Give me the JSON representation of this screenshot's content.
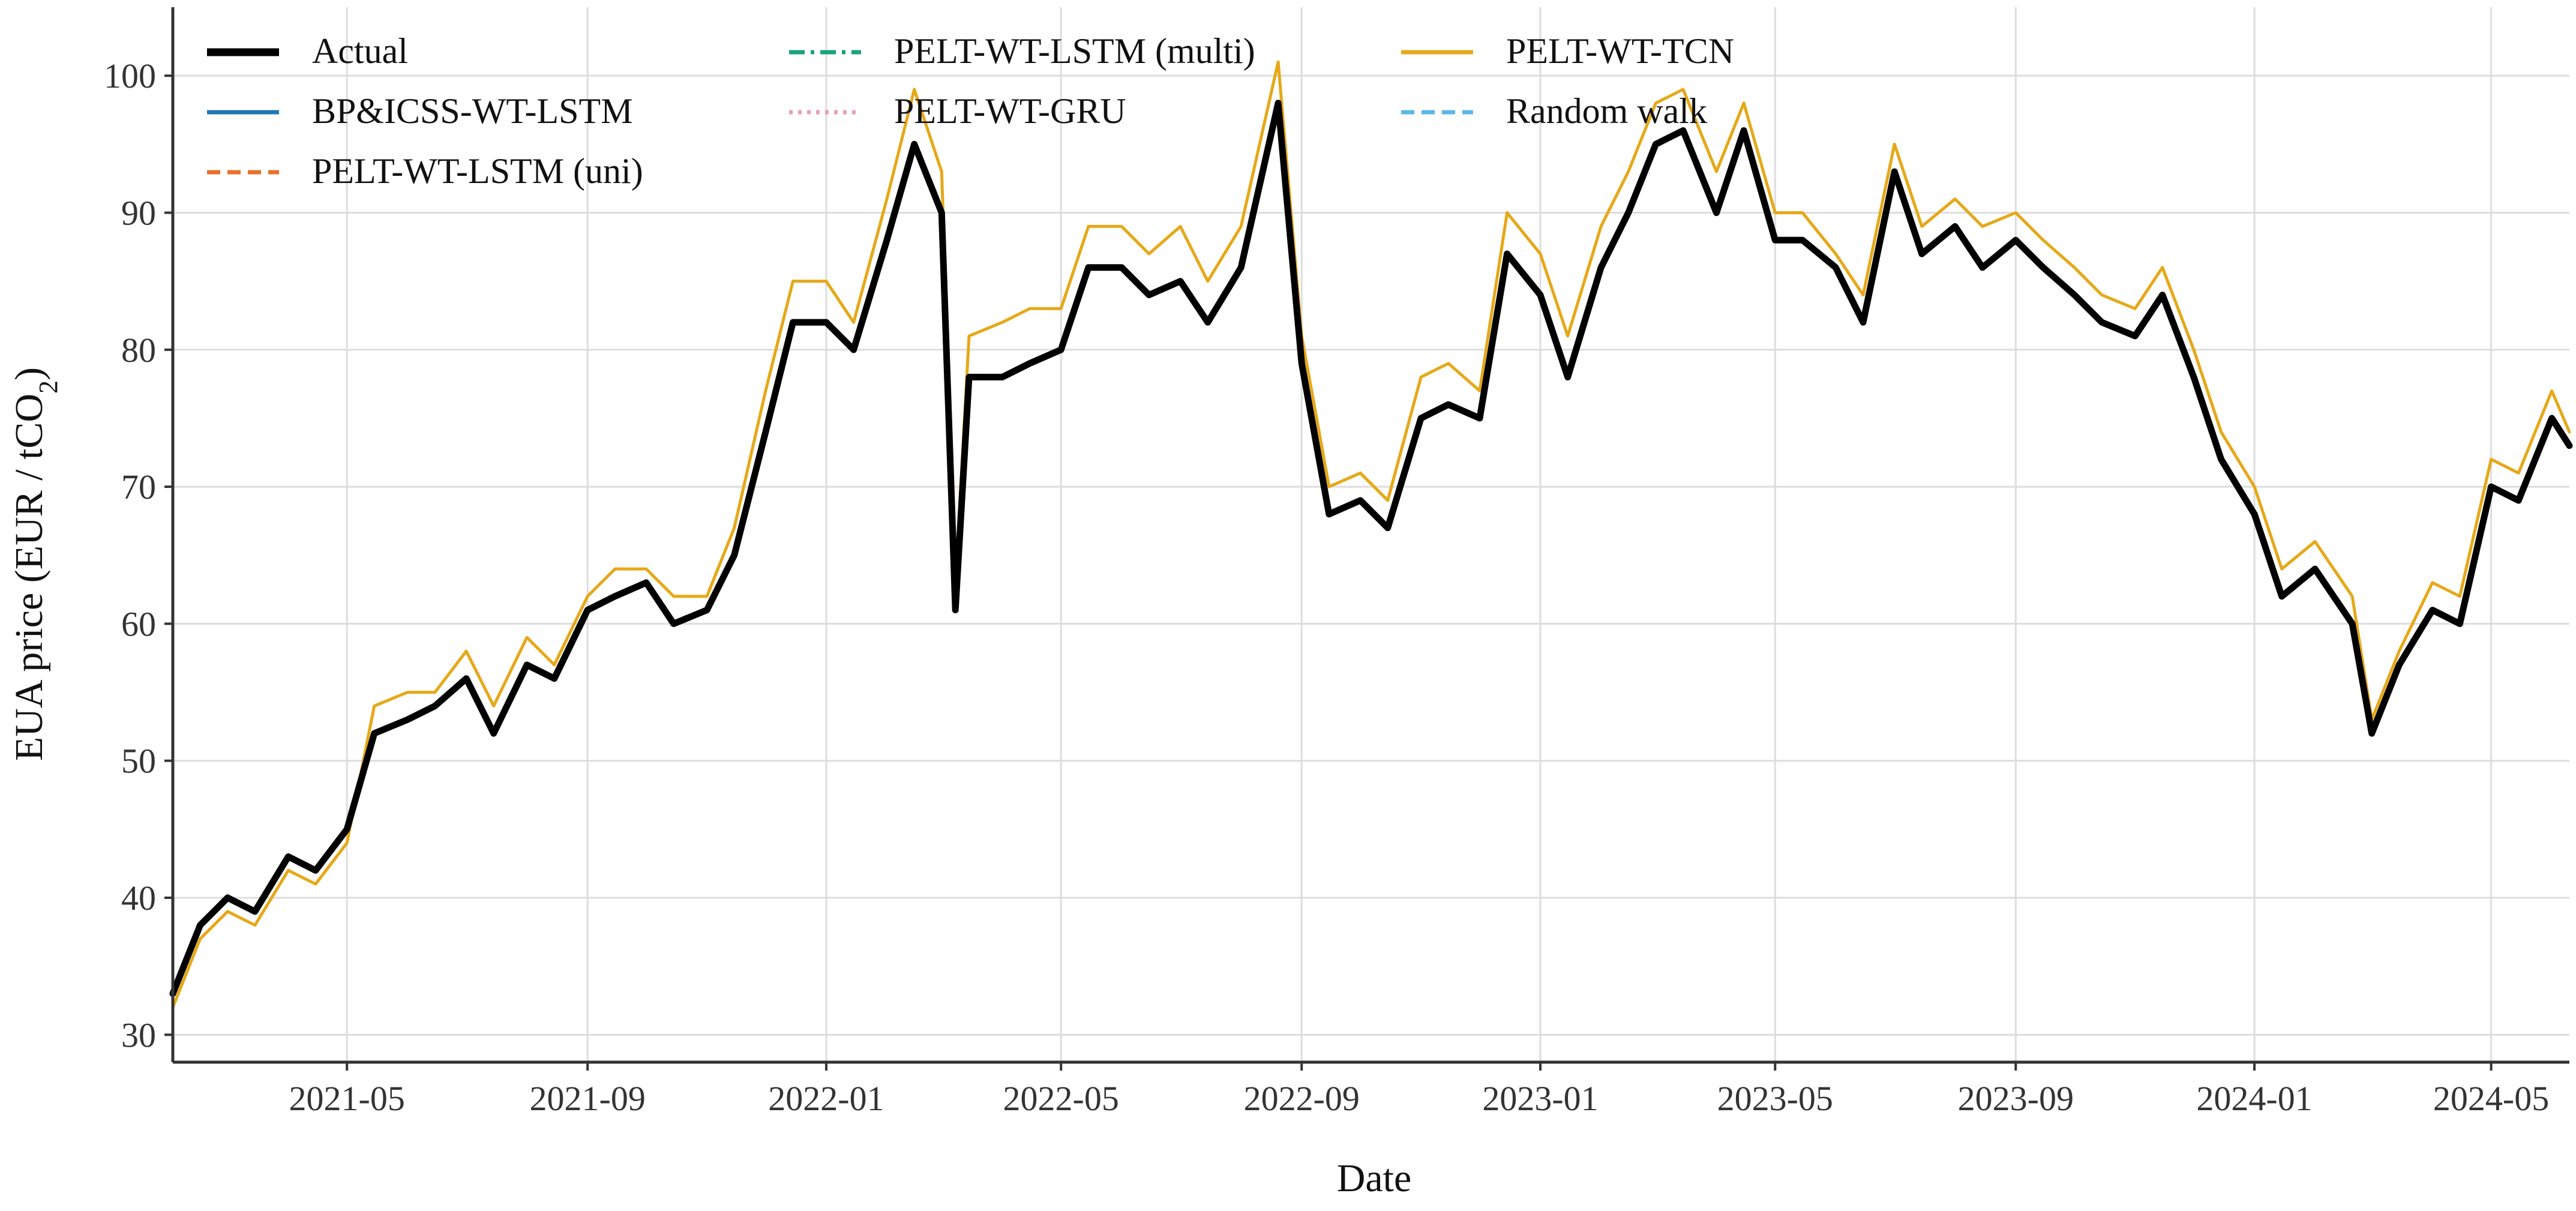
{
  "chart_data": {
    "type": "line",
    "title": "",
    "xlabel": "Date",
    "ylabel": "EUA price (EUR / tCO₂)",
    "ylabel_main": "EUA price (EUR / tCO",
    "ylabel_sub": "2",
    "ylabel_tail": ")",
    "x_range": [
      "2021-02-01",
      "2024-06-10"
    ],
    "ylim": [
      28,
      105
    ],
    "y_ticks": [
      30,
      40,
      50,
      60,
      70,
      80,
      90,
      100
    ],
    "x_ticks": [
      "2021-05",
      "2021-09",
      "2022-01",
      "2022-05",
      "2022-09",
      "2023-01",
      "2023-05",
      "2023-09",
      "2024-01",
      "2024-05"
    ],
    "grid": true,
    "legend_position": "top-left",
    "dates": [
      "2021-02-01",
      "2021-02-15",
      "2021-03-01",
      "2021-03-15",
      "2021-04-01",
      "2021-04-15",
      "2021-05-01",
      "2021-05-15",
      "2021-06-01",
      "2021-06-15",
      "2021-07-01",
      "2021-07-15",
      "2021-08-01",
      "2021-08-15",
      "2021-09-01",
      "2021-09-15",
      "2021-10-01",
      "2021-10-15",
      "2021-11-01",
      "2021-11-15",
      "2021-12-01",
      "2021-12-15",
      "2022-01-01",
      "2022-01-15",
      "2022-02-01",
      "2022-02-15",
      "2022-03-01",
      "2022-03-08",
      "2022-03-15",
      "2022-04-01",
      "2022-04-15",
      "2022-05-01",
      "2022-05-15",
      "2022-06-01",
      "2022-06-15",
      "2022-07-01",
      "2022-07-15",
      "2022-08-01",
      "2022-08-20",
      "2022-09-01",
      "2022-09-15",
      "2022-10-01",
      "2022-10-15",
      "2022-11-01",
      "2022-11-15",
      "2022-12-01",
      "2022-12-15",
      "2023-01-01",
      "2023-01-15",
      "2023-02-01",
      "2023-02-15",
      "2023-03-01",
      "2023-03-15",
      "2023-04-01",
      "2023-04-15",
      "2023-05-01",
      "2023-05-15",
      "2023-06-01",
      "2023-06-15",
      "2023-07-01",
      "2023-07-15",
      "2023-08-01",
      "2023-08-15",
      "2023-09-01",
      "2023-09-15",
      "2023-10-01",
      "2023-10-15",
      "2023-11-01",
      "2023-11-15",
      "2023-12-01",
      "2023-12-15",
      "2024-01-01",
      "2024-01-15",
      "2024-02-01",
      "2024-02-20",
      "2024-03-01",
      "2024-03-15",
      "2024-04-01",
      "2024-04-15",
      "2024-05-01",
      "2024-05-15",
      "2024-06-01",
      "2024-06-10"
    ],
    "series": [
      {
        "name": "Actual",
        "color": "#000000",
        "style": "solid",
        "values": [
          33,
          38,
          40,
          39,
          43,
          42,
          45,
          52,
          53,
          54,
          56,
          52,
          57,
          56,
          61,
          62,
          63,
          60,
          61,
          65,
          74,
          82,
          82,
          80,
          88,
          95,
          90,
          61,
          78,
          78,
          79,
          80,
          86,
          86,
          84,
          85,
          82,
          86,
          98,
          79,
          68,
          69,
          67,
          75,
          76,
          75,
          87,
          84,
          78,
          86,
          90,
          95,
          96,
          90,
          96,
          88,
          88,
          86,
          82,
          93,
          87,
          89,
          86,
          88,
          86,
          84,
          82,
          81,
          84,
          78,
          72,
          68,
          62,
          64,
          60,
          52,
          57,
          61,
          60,
          70,
          69,
          75,
          73
        ]
      },
      {
        "name": "BP&ICSS-WT-LSTM",
        "color": "#1f77b4",
        "style": "solid",
        "values": [
          33,
          38,
          40,
          39,
          43,
          42,
          45,
          52,
          53,
          54,
          56,
          52,
          57,
          56,
          61,
          62,
          63,
          60,
          61,
          65,
          74,
          82,
          82,
          80,
          88,
          95,
          90,
          61,
          78,
          78,
          79,
          80,
          86,
          86,
          84,
          85,
          82,
          86,
          98,
          79,
          68,
          69,
          67,
          75,
          76,
          75,
          87,
          84,
          78,
          86,
          90,
          95,
          96,
          90,
          96,
          88,
          88,
          86,
          82,
          93,
          87,
          89,
          86,
          88,
          86,
          84,
          82,
          81,
          84,
          78,
          72,
          68,
          62,
          64,
          60,
          52,
          57,
          61,
          60,
          70,
          69,
          75,
          73
        ]
      },
      {
        "name": "PELT-WT-LSTM (uni)",
        "color": "#e8702a",
        "style": "dashed",
        "values": [
          33,
          38,
          40,
          39,
          43,
          42,
          45,
          52,
          53,
          54,
          56,
          52,
          57,
          56,
          61,
          62,
          63,
          60,
          61,
          65,
          74,
          82,
          82,
          80,
          88,
          95,
          90,
          61,
          78,
          78,
          79,
          80,
          86,
          86,
          84,
          85,
          82,
          86,
          98,
          79,
          68,
          69,
          67,
          75,
          76,
          75,
          87,
          84,
          78,
          86,
          90,
          95,
          96,
          90,
          96,
          88,
          88,
          86,
          82,
          93,
          87,
          89,
          86,
          88,
          86,
          84,
          82,
          81,
          84,
          78,
          72,
          68,
          62,
          64,
          60,
          52,
          57,
          61,
          60,
          70,
          69,
          75,
          73
        ]
      },
      {
        "name": "PELT-WT-LSTM (multi)",
        "color": "#1aa37a",
        "style": "dashdot",
        "values": [
          33,
          38,
          40,
          39,
          43,
          42,
          45,
          52,
          53,
          54,
          56,
          52,
          57,
          56,
          61,
          62,
          63,
          60,
          61,
          65,
          74,
          82,
          82,
          80,
          88,
          95,
          90,
          61,
          78,
          78,
          79,
          80,
          86,
          86,
          84,
          85,
          82,
          86,
          98,
          79,
          68,
          69,
          67,
          75,
          76,
          75,
          87,
          84,
          78,
          86,
          90,
          95,
          96,
          90,
          96,
          88,
          88,
          86,
          82,
          93,
          87,
          89,
          86,
          88,
          86,
          84,
          82,
          81,
          84,
          78,
          72,
          68,
          62,
          64,
          60,
          52,
          57,
          61,
          60,
          70,
          69,
          75,
          73
        ]
      },
      {
        "name": "PELT-WT-GRU",
        "color": "#e8a0b0",
        "style": "dotted",
        "values": [
          33,
          38,
          40,
          39,
          43,
          42,
          45,
          52,
          53,
          54,
          56,
          52,
          57,
          56,
          61,
          62,
          63,
          60,
          61,
          65,
          74,
          82,
          82,
          80,
          88,
          95,
          90,
          61,
          78,
          78,
          79,
          80,
          86,
          86,
          84,
          85,
          82,
          86,
          98,
          79,
          68,
          69,
          67,
          75,
          76,
          75,
          87,
          84,
          78,
          86,
          90,
          95,
          96,
          90,
          96,
          88,
          88,
          86,
          82,
          93,
          87,
          89,
          86,
          88,
          86,
          84,
          82,
          81,
          84,
          78,
          72,
          68,
          62,
          64,
          60,
          52,
          57,
          61,
          60,
          70,
          69,
          75,
          73
        ]
      },
      {
        "name": "PELT-WT-TCN",
        "color": "#e6a817",
        "style": "solid",
        "values": [
          32,
          37,
          39,
          38,
          42,
          41,
          44,
          54,
          55,
          55,
          58,
          54,
          59,
          57,
          62,
          64,
          64,
          62,
          62,
          67,
          77,
          85,
          85,
          82,
          91,
          99,
          93,
          63,
          81,
          82,
          83,
          83,
          89,
          89,
          87,
          89,
          85,
          89,
          101,
          81,
          70,
          71,
          69,
          78,
          79,
          77,
          90,
          87,
          81,
          89,
          93,
          98,
          99,
          93,
          98,
          90,
          90,
          87,
          84,
          95,
          89,
          91,
          89,
          90,
          88,
          86,
          84,
          83,
          86,
          80,
          74,
          70,
          64,
          66,
          62,
          53,
          58,
          63,
          62,
          72,
          71,
          77,
          74
        ]
      },
      {
        "name": "Random walk",
        "color": "#5bb8e6",
        "style": "dashed",
        "values": [
          33,
          38,
          40,
          39,
          43,
          42,
          45,
          52,
          53,
          54,
          56,
          52,
          57,
          56,
          61,
          62,
          63,
          60,
          61,
          65,
          74,
          82,
          82,
          80,
          88,
          95,
          90,
          61,
          78,
          78,
          79,
          80,
          86,
          86,
          84,
          85,
          82,
          86,
          98,
          79,
          68,
          69,
          67,
          75,
          76,
          75,
          87,
          84,
          78,
          86,
          90,
          95,
          96,
          90,
          96,
          88,
          88,
          86,
          82,
          93,
          87,
          89,
          86,
          88,
          86,
          84,
          82,
          81,
          84,
          78,
          72,
          68,
          62,
          64,
          60,
          52,
          57,
          61,
          60,
          70,
          69,
          75,
          73
        ]
      }
    ]
  }
}
